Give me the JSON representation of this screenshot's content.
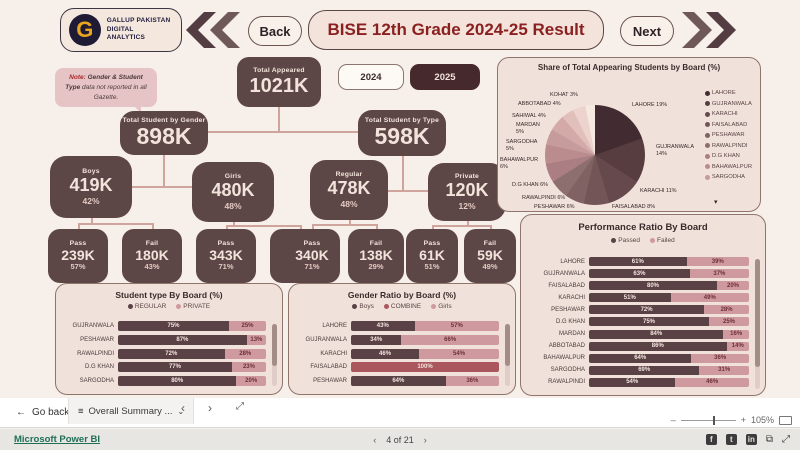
{
  "header": {
    "logo_line1": "GALLUP PAKISTAN",
    "logo_line2": "DIGITAL ANALYTICS",
    "back_label": "Back",
    "title": "BISE 12th Grade 2024-25 Result",
    "next_label": "Next"
  },
  "note": {
    "prefix": "Note:",
    "emphasis": "Gender & Student Type",
    "rest": "data not reported in all Gazette."
  },
  "kpi": {
    "label": "Total Appeared",
    "value": "1021K"
  },
  "year_toggle": {
    "options": [
      "2024",
      "2025"
    ],
    "selected": "2025"
  },
  "gender_tree": {
    "root": {
      "label": "Total Student by Gender",
      "value": "898K"
    },
    "boys": {
      "label": "Boys",
      "value": "419K",
      "pct": "42%"
    },
    "girls": {
      "label": "Girls",
      "value": "480K",
      "pct": "48%"
    },
    "boys_pass": {
      "label": "Pass",
      "value": "239K",
      "pct": "57%"
    },
    "boys_fail": {
      "label": "Fail",
      "value": "180K",
      "pct": "43%"
    },
    "girls_pass": {
      "label": "Pass",
      "value": "343K",
      "pct": "71%"
    },
    "girls_fail": {
      "label": "Fail",
      "value": "137K",
      "pct": "29%"
    }
  },
  "type_tree": {
    "root": {
      "label": "Total Student by Type",
      "value": "598K"
    },
    "regular": {
      "label": "Regular",
      "value": "478K",
      "pct": "48%"
    },
    "private": {
      "label": "Private",
      "value": "120K",
      "pct": "12%"
    },
    "regular_pass": {
      "label": "Pass",
      "value": "340K",
      "pct": "71%"
    },
    "regular_fail": {
      "label": "Fail",
      "value": "138K",
      "pct": "29%"
    },
    "private_pass": {
      "label": "Pass",
      "value": "61K",
      "pct": "51%"
    },
    "private_fail": {
      "label": "Fail",
      "value": "59K",
      "pct": "49%"
    }
  },
  "pie_chart": {
    "type": "pie",
    "title": "Share of Total Appearing Students by Board (%)",
    "slices": [
      {
        "label": "LAHORE",
        "pct": 19
      },
      {
        "label": "GUJRANWALA",
        "pct": 14
      },
      {
        "label": "KARACHI",
        "pct": 11
      },
      {
        "label": "FAISALABAD",
        "pct": 8
      },
      {
        "label": "PESHAWAR",
        "pct": 6
      },
      {
        "label": "RAWALPINDI",
        "pct": 6
      },
      {
        "label": "D.G KHAN",
        "pct": 6
      },
      {
        "label": "BAHAWALPUR",
        "pct": 6
      },
      {
        "label": "SARGODHA",
        "pct": 5
      },
      {
        "label": "MARDAN",
        "pct": 5
      },
      {
        "label": "SAHIWAL",
        "pct": 4
      },
      {
        "label": "ABBOTABAD",
        "pct": 4
      },
      {
        "label": "KOHAT",
        "pct": 3
      }
    ],
    "colors": [
      "#422c31",
      "#573c40",
      "#66494c",
      "#735557",
      "#7f6261",
      "#8c6f6e",
      "#aa7e82",
      "#ba8c8e",
      "#c59b9b",
      "#d3aaa8",
      "#e1c0bb",
      "#ecd4cc",
      "#f6e9df"
    ],
    "legend_visible": [
      "LAHORE",
      "GUJRANWALA",
      "KARACHI",
      "FAISALABAD",
      "PESHAWAR",
      "RAWALPINDI",
      "D.G KHAN",
      "BAHAWALPUR",
      "SARGODHA"
    ]
  },
  "performance_chart": {
    "type": "bar",
    "title": "Performance Ratio By Board",
    "legend": [
      "Passed",
      "Failed"
    ],
    "colors": [
      "#5a4145",
      "#cf99a0"
    ],
    "text_colors": [
      "#f3e6df",
      "#6e2f36"
    ],
    "rows": [
      {
        "label": "LAHORE",
        "values": [
          61,
          39
        ]
      },
      {
        "label": "GUJRANWALA",
        "values": [
          63,
          37
        ]
      },
      {
        "label": "FAISALABAD",
        "values": [
          80,
          20
        ]
      },
      {
        "label": "KARACHI",
        "values": [
          51,
          49
        ]
      },
      {
        "label": "PESHAWAR",
        "values": [
          72,
          28
        ]
      },
      {
        "label": "D.G KHAN",
        "values": [
          75,
          25
        ]
      },
      {
        "label": "MARDAN",
        "values": [
          84,
          16
        ]
      },
      {
        "label": "ABBOTABAD",
        "values": [
          86,
          14
        ]
      },
      {
        "label": "BAHAWALPUR",
        "values": [
          64,
          36
        ]
      },
      {
        "label": "SARGODHA",
        "values": [
          69,
          31
        ]
      },
      {
        "label": "RAWALPINDI",
        "values": [
          54,
          46
        ]
      }
    ]
  },
  "student_type_chart": {
    "type": "bar",
    "title": "Student type By Board (%)",
    "legend": [
      "REGULAR",
      "PRIVATE"
    ],
    "colors": [
      "#5a4145",
      "#cf99a0"
    ],
    "text_colors": [
      "#f3e6df",
      "#6e2f36"
    ],
    "rows": [
      {
        "label": "GUJRANWALA",
        "values": [
          75,
          25
        ]
      },
      {
        "label": "PESHAWAR",
        "values": [
          87,
          13
        ]
      },
      {
        "label": "RAWALPINDI",
        "values": [
          72,
          28
        ]
      },
      {
        "label": "D.G KHAN",
        "values": [
          77,
          23
        ]
      },
      {
        "label": "SARGODHA",
        "values": [
          80,
          20
        ]
      }
    ]
  },
  "gender_ratio_chart": {
    "type": "bar",
    "title": "Gender Ratio by Board (%)",
    "legend": [
      "Boys",
      "COMBINE",
      "Girls"
    ],
    "colors": [
      "#5a4145",
      "#a9565c",
      "#cf99a0"
    ],
    "text_colors": [
      "#f3e6df",
      "#f3e6df",
      "#6e2f36"
    ],
    "rows": [
      {
        "label": "LAHORE",
        "values": [
          43,
          0,
          57
        ]
      },
      {
        "label": "GUJRANWALA",
        "values": [
          34,
          0,
          66
        ]
      },
      {
        "label": "KARACHI",
        "values": [
          46,
          0,
          54
        ]
      },
      {
        "label": "FAISALABAD",
        "values": [
          0,
          100,
          0
        ]
      },
      {
        "label": "PESHAWAR",
        "values": [
          64,
          0,
          36
        ]
      }
    ]
  },
  "action_bar": {
    "go_back": "Go back",
    "tab_label": "Overall Summary ...",
    "zoom_level": "105%"
  },
  "footer": {
    "link": "Microsoft Power BI",
    "page_label": "4 of 21"
  }
}
